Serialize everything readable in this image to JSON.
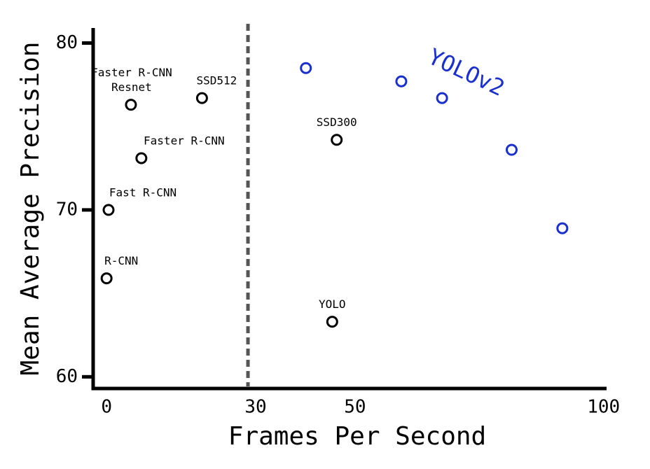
{
  "chart_data": {
    "type": "scatter",
    "xlabel": "Frames Per Second",
    "ylabel": "Mean Average Precision",
    "xlim": [
      -2.7,
      100.6
    ],
    "ylim": [
      59.3,
      80.9
    ],
    "xticks": [
      0,
      30,
      50,
      100
    ],
    "yticks": [
      60,
      70,
      80
    ],
    "vlines": [
      30
    ],
    "series": [
      {
        "color": "#000000",
        "x": [
          0,
          0.4,
          7,
          4.9,
          19.2,
          46.3,
          45.4
        ],
        "values": [
          65.9,
          70,
          73.1,
          76.3,
          76.7,
          74.2,
          63.3
        ],
        "point_labels": [
          [
            "R-CNN"
          ],
          [
            "Fast R-CNN"
          ],
          [
            "Faster R-CNN"
          ],
          [
            "Faster R-CNN",
            "Resnet"
          ],
          [
            "SSD512"
          ],
          [
            "SSD300"
          ],
          [
            "YOLO"
          ]
        ]
      },
      {
        "name": "YOLOv2",
        "color": "#1a2fd0",
        "x": [
          40.1,
          59.3,
          67.5,
          81.5,
          91.7
        ],
        "values": [
          78.5,
          77.7,
          76.7,
          73.6,
          68.9
        ]
      }
    ]
  }
}
